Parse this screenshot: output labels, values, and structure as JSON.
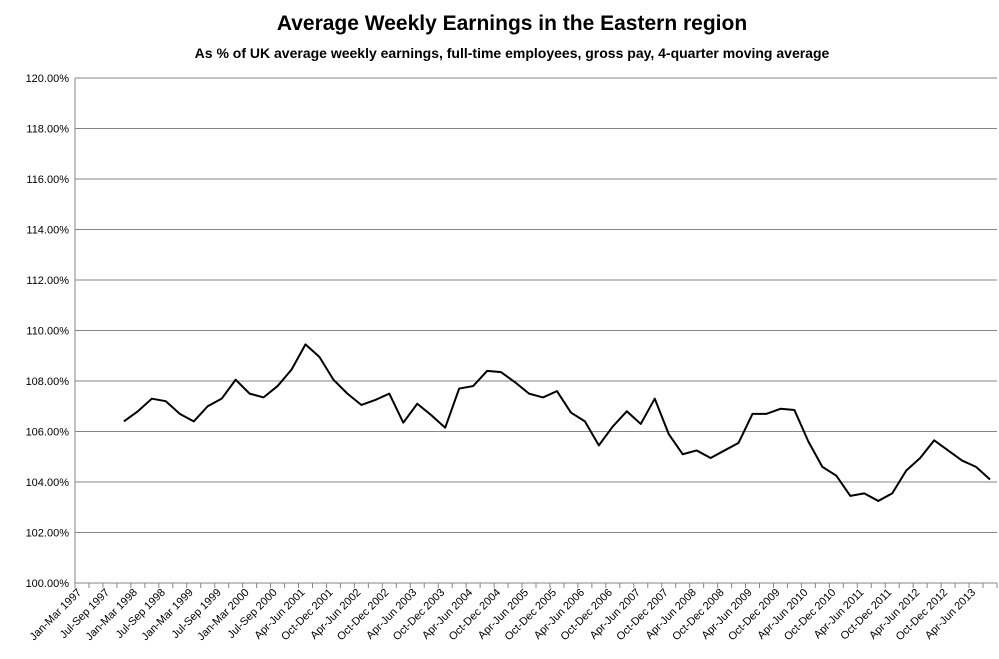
{
  "chart_data": {
    "type": "line",
    "title": "Average Weekly Earnings in the Eastern region",
    "subtitle": "As % of UK average weekly earnings, full-time employees,  gross pay, 4-quarter moving average",
    "categories": [
      "Jan-Mar 1997",
      null,
      "Jul-Sep 1997",
      null,
      "Jan-Mar 1998",
      null,
      "Jul-Sep 1998",
      null,
      "Jan-Mar 1999",
      null,
      "Jul-Sep 1999",
      null,
      "Jan-Mar 2000",
      null,
      "Jul-Sep 2000",
      null,
      "Apr-Jun 2001",
      null,
      "Oct-Dec 2001",
      null,
      "Apr-Jun 2002",
      null,
      "Oct-Dec 2002",
      null,
      "Apr-Jun 2003",
      null,
      "Oct-Dec 2003",
      null,
      "Apr-Jun 2004",
      null,
      "Oct-Dec 2004",
      null,
      "Apr-Jun 2005",
      null,
      "Oct-Dec 2005",
      null,
      "Apr-Jun 2006",
      null,
      "Oct-Dec 2006",
      null,
      "Apr-Jun 2007",
      null,
      "Oct-Dec 2007",
      null,
      "Apr-Jun 2008",
      null,
      "Oct-Dec 2008",
      null,
      "Apr-Jun 2009",
      null,
      "Oct-Dec 2009",
      null,
      "Apr-Jun 2010",
      null,
      "Oct-Dec 2010",
      null,
      "Apr-Jun 2011",
      null,
      "Oct-Dec 2011",
      null,
      "Apr-Jun 2012",
      null,
      "Oct-Dec 2012",
      null,
      "Apr-Jun 2013",
      null
    ],
    "values": [
      null,
      null,
      null,
      106.4,
      106.8,
      107.3,
      107.2,
      106.7,
      106.4,
      107.0,
      107.3,
      108.05,
      107.5,
      107.35,
      107.8,
      108.45,
      109.45,
      108.95,
      108.05,
      107.5,
      107.05,
      107.25,
      107.5,
      106.35,
      107.1,
      106.65,
      106.15,
      107.7,
      107.8,
      108.4,
      108.35,
      107.95,
      107.5,
      107.35,
      107.6,
      106.75,
      106.4,
      105.45,
      106.2,
      106.8,
      106.3,
      107.3,
      105.9,
      105.1,
      105.25,
      104.95,
      105.25,
      105.55,
      106.7,
      106.7,
      106.9,
      106.85,
      105.6,
      104.6,
      104.25,
      103.45,
      103.55,
      103.25,
      103.55,
      104.45,
      104.95,
      105.65,
      105.25,
      104.85,
      104.6,
      104.1
    ],
    "color": "#000000",
    "ylim": [
      100,
      120
    ],
    "yticks": [
      {
        "value": 100,
        "label": "100.00%"
      },
      {
        "value": 102,
        "label": "102.00%"
      },
      {
        "value": 104,
        "label": "104.00%"
      },
      {
        "value": 106,
        "label": "106.00%"
      },
      {
        "value": 108,
        "label": "108.00%"
      },
      {
        "value": 110,
        "label": "110.00%"
      },
      {
        "value": 112,
        "label": "112.00%"
      },
      {
        "value": 114,
        "label": "114.00%"
      },
      {
        "value": 116,
        "label": "116.00%"
      },
      {
        "value": 118,
        "label": "118.00%"
      },
      {
        "value": 120,
        "label": "120.00%"
      }
    ],
    "grid": true
  }
}
